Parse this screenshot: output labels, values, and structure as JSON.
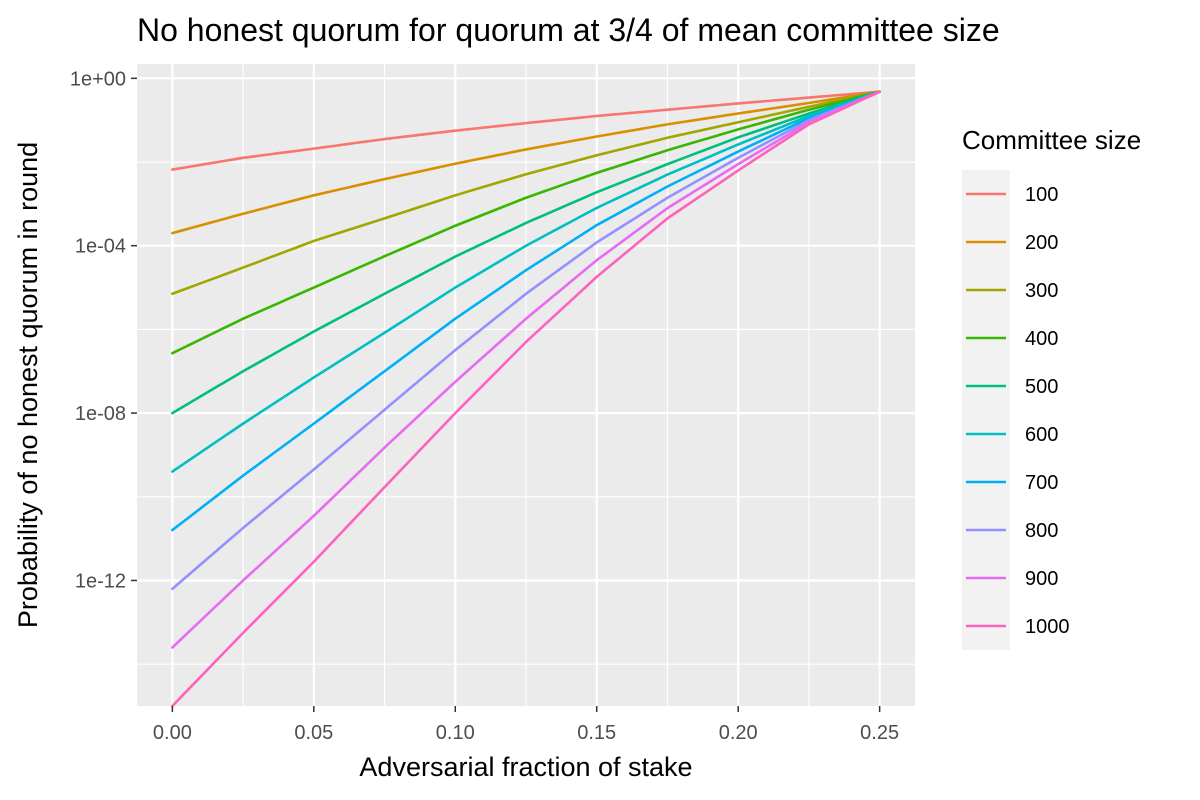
{
  "chart_data": {
    "type": "line",
    "title": "No honest quorum for quorum at 3/4 of mean committee size",
    "xlabel": "Adversarial fraction of stake",
    "ylabel": "Probability of no honest quorum in round",
    "y_scale": "log10",
    "xlim": [
      -0.0125,
      0.2625
    ],
    "ylim": [
      1e-15,
      2.2
    ],
    "x_ticks": [
      0.0,
      0.05,
      0.1,
      0.15,
      0.2,
      0.25
    ],
    "x_tick_labels": [
      "0.00",
      "0.05",
      "0.10",
      "0.15",
      "0.20",
      "0.25"
    ],
    "y_ticks": [
      1,
      0.0001,
      1e-08,
      1e-12
    ],
    "y_tick_labels": [
      "1e+00",
      "1e-04",
      "1e-08",
      "1e-12"
    ],
    "grid": true,
    "legend_title": "Committee size",
    "legend_position": "right",
    "x": [
      0.0,
      0.025,
      0.05,
      0.075,
      0.1,
      0.125,
      0.15,
      0.175,
      0.2,
      0.225,
      0.25
    ],
    "series": [
      {
        "name": "100",
        "color": "#F8766D",
        "values": [
          0.0066,
          0.0126,
          0.0209,
          0.0354,
          0.0562,
          0.0851,
          0.1259,
          0.1778,
          0.2512,
          0.3467,
          0.4786
        ]
      },
      {
        "name": "200",
        "color": "#D89000",
        "values": [
          0.0002,
          0.00058,
          0.0016,
          0.0039,
          0.0091,
          0.02,
          0.0407,
          0.0794,
          0.1445,
          0.257,
          0.4786
        ]
      },
      {
        "name": "300",
        "color": "#A3A500",
        "values": [
          7.1e-06,
          3e-05,
          0.00013,
          0.00045,
          0.0016,
          0.0051,
          0.0145,
          0.038,
          0.0891,
          0.2089,
          0.4786
        ]
      },
      {
        "name": "400",
        "color": "#39B600",
        "values": [
          2.7e-07,
          1.8e-06,
          1e-05,
          5.6e-05,
          0.0003,
          0.0014,
          0.0055,
          0.0191,
          0.0603,
          0.1778,
          0.4786
        ]
      },
      {
        "name": "500",
        "color": "#00BF7D",
        "values": [
          1e-08,
          1e-07,
          8.9e-07,
          7.1e-06,
          5.5e-05,
          0.00035,
          0.0019,
          0.0089,
          0.0389,
          0.1445,
          0.4786
        ]
      },
      {
        "name": "600",
        "color": "#00BFC4",
        "values": [
          4e-10,
          5.6e-09,
          7.1e-08,
          8.3e-07,
          1e-05,
          0.0001,
          0.0008,
          0.005,
          0.0263,
          0.1259,
          0.4786
        ]
      },
      {
        "name": "700",
        "color": "#00B0F6",
        "values": [
          1.6e-11,
          3.2e-10,
          5.6e-09,
          1e-07,
          1.8e-06,
          2.6e-05,
          0.00031,
          0.0026,
          0.0178,
          0.1122,
          0.4786
        ]
      },
      {
        "name": "800",
        "color": "#9590FF",
        "values": [
          6.3e-13,
          1.8e-11,
          4.5e-10,
          1.2e-08,
          3.2e-07,
          7.1e-06,
          0.00012,
          0.0014,
          0.0126,
          0.1,
          0.4786
        ]
      },
      {
        "name": "900",
        "color": "#E76BF3",
        "values": [
          2.5e-14,
          1e-12,
          3.5e-11,
          1.5e-09,
          5.6e-08,
          1.8e-06,
          4.5e-05,
          0.00079,
          0.0089,
          0.0891,
          0.4786
        ]
      },
      {
        "name": "1000",
        "color": "#FF62BC",
        "values": [
          1e-15,
          5.6e-14,
          2.8e-12,
          1.7e-10,
          1e-08,
          5e-07,
          1.8e-05,
          0.00045,
          0.0063,
          0.0794,
          0.4786
        ]
      }
    ]
  }
}
